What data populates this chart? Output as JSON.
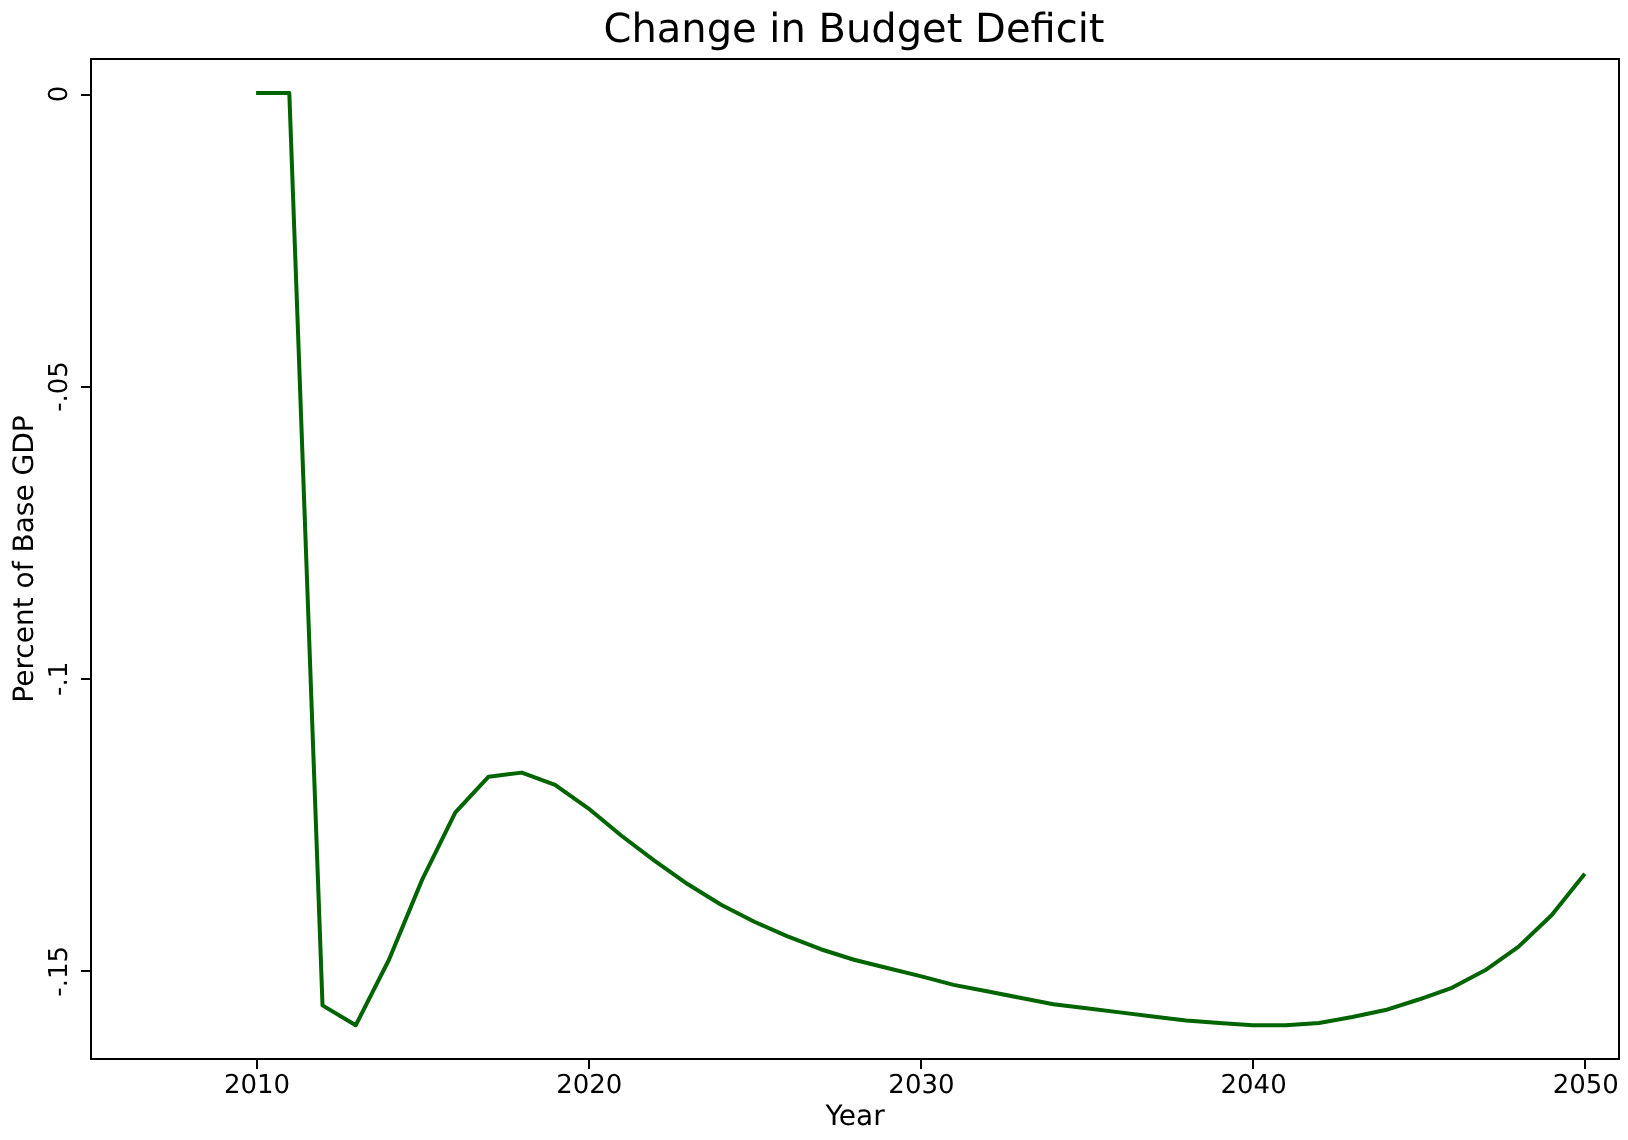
{
  "chart_data": {
    "type": "line",
    "title": "Change in Budget Deficit",
    "xlabel": "Year",
    "ylabel": "Percent of Base GDP",
    "x": [
      2010,
      2011,
      2012,
      2013,
      2014,
      2015,
      2016,
      2017,
      2018,
      2019,
      2020,
      2021,
      2022,
      2023,
      2024,
      2025,
      2026,
      2027,
      2028,
      2029,
      2030,
      2031,
      2032,
      2033,
      2034,
      2035,
      2036,
      2037,
      2038,
      2039,
      2040,
      2041,
      2042,
      2043,
      2044,
      2045,
      2046,
      2047,
      2048,
      2049,
      2050
    ],
    "series": [
      {
        "color": "#006400",
        "values": [
          0,
          0,
          -0.156,
          -0.1594,
          -0.1482,
          -0.1345,
          -0.123,
          -0.1169,
          -0.1162,
          -0.1183,
          -0.1223,
          -0.127,
          -0.1313,
          -0.1353,
          -0.1388,
          -0.1417,
          -0.1442,
          -0.1464,
          -0.1482,
          -0.1496,
          -0.151,
          -0.1525,
          -0.1536,
          -0.1547,
          -0.1558,
          -0.1565,
          -0.1572,
          -0.1579,
          -0.1586,
          -0.159,
          -0.1594,
          -0.1594,
          -0.159,
          -0.158,
          -0.1568,
          -0.155,
          -0.153,
          -0.15,
          -0.146,
          -0.1406,
          -0.1335
        ]
      }
    ],
    "xlim": [
      2005,
      2051
    ],
    "xticks": [
      2010,
      2020,
      2030,
      2040,
      2050
    ],
    "ylim": [
      -0.165,
      0.006
    ],
    "yticks": [
      0,
      {
        "value": -0.05,
        "label": "-.05"
      },
      {
        "value": -0.1,
        "label": "-.1"
      },
      {
        "value": -0.15,
        "label": "-.15"
      }
    ],
    "grid": false,
    "marker": "none",
    "line_style": "solid"
  }
}
